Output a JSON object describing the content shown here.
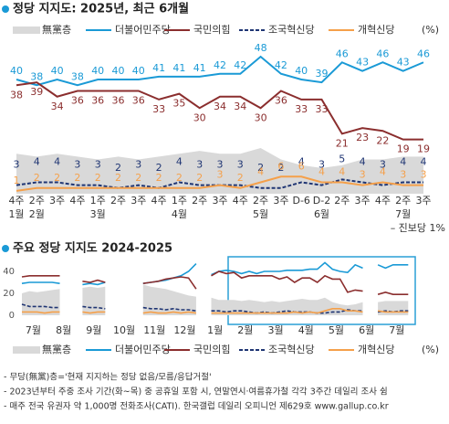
{
  "chart_data": [
    {
      "type": "line",
      "title": "정당 지지도: 2025년, 최근 6개월",
      "categories": [
        "4주",
        "2주",
        "3주",
        "4주",
        "1주",
        "2주",
        "3주",
        "4주",
        "1주",
        "2주",
        "3주",
        "4주",
        "2주",
        "3주",
        "D-6",
        "D-2",
        "2주",
        "3주",
        "4주",
        "2주",
        "3주"
      ],
      "months": [
        "1월",
        "2월",
        null,
        null,
        "3월",
        null,
        null,
        null,
        "4월",
        null,
        null,
        null,
        "5월",
        null,
        null,
        "6월",
        null,
        null,
        null,
        "7월",
        null
      ],
      "series": [
        {
          "name": "無黨층",
          "color": "#d9d9d9",
          "style": "area",
          "values": [
            14,
            13,
            14,
            13,
            12,
            13,
            12,
            13,
            14,
            15,
            14,
            14,
            16,
            12,
            10,
            9,
            10,
            12,
            12,
            13,
            13
          ]
        },
        {
          "name": "더불어민주당",
          "color": "#1a9ad6",
          "values": [
            40,
            38,
            40,
            38,
            40,
            40,
            40,
            41,
            41,
            41,
            42,
            42,
            48,
            42,
            40,
            39,
            46,
            43,
            46,
            43,
            46
          ]
        },
        {
          "name": "국민의힘",
          "color": "#8b2e2e",
          "values": [
            38,
            39,
            34,
            36,
            36,
            36,
            36,
            33,
            35,
            30,
            34,
            34,
            30,
            36,
            33,
            33,
            21,
            23,
            22,
            19,
            19
          ]
        },
        {
          "name": "조국혁신당",
          "color": "#1f3573",
          "dash": true,
          "values": [
            3,
            4,
            4,
            3,
            3,
            2,
            3,
            2,
            4,
            3,
            3,
            3,
            2,
            2,
            4,
            3,
            5,
            4,
            3,
            4,
            4
          ]
        },
        {
          "name": "개혁신당",
          "color": "#f5a04a",
          "values": [
            1,
            2,
            2,
            2,
            2,
            2,
            2,
            2,
            2,
            2,
            3,
            2,
            4,
            6,
            6,
            4,
            4,
            3,
            4,
            3,
            3
          ]
        }
      ],
      "unit": "(%)",
      "data_labels": true,
      "annotation": "– 진보당 1%"
    },
    {
      "type": "line",
      "title": "주요 정당 지지도 2024-2025",
      "categories": [
        "7월",
        null,
        null,
        null,
        "8월",
        null,
        null,
        null,
        "9월",
        null,
        null,
        null,
        "10월",
        null,
        null,
        null,
        "11월",
        null,
        null,
        null,
        "12월",
        null,
        null,
        null,
        "1월",
        null,
        null,
        null,
        "2월",
        null,
        null,
        null,
        "3월",
        null,
        null,
        null,
        "4월",
        null,
        null,
        null,
        "5월",
        null,
        null,
        null,
        "6월",
        null,
        null,
        null,
        "7월",
        null,
        null,
        null
      ],
      "series": [
        {
          "name": "無黨층",
          "color": "#d9d9d9",
          "style": "area",
          "values": [
            20,
            22,
            21,
            22,
            23,
            24,
            null,
            null,
            25,
            26,
            25,
            26,
            null,
            27,
            null,
            null,
            28,
            26,
            25,
            24,
            22,
            20,
            18,
            17,
            null,
            16,
            14,
            14,
            14,
            13,
            14,
            13,
            12,
            13,
            12,
            13,
            14,
            15,
            14,
            14,
            16,
            12,
            10,
            9,
            10,
            12,
            null,
            12,
            13,
            13,
            13,
            13
          ]
        },
        {
          "name": "더불어민주당",
          "color": "#1a9ad6",
          "values": [
            29,
            30,
            30,
            30,
            30,
            29,
            null,
            null,
            28,
            29,
            28,
            30,
            null,
            31,
            null,
            null,
            29,
            30,
            31,
            32,
            34,
            36,
            40,
            47,
            null,
            37,
            40,
            41,
            40,
            38,
            40,
            38,
            40,
            40,
            40,
            41,
            41,
            41,
            42,
            42,
            48,
            42,
            40,
            39,
            46,
            43,
            null,
            46,
            43,
            46,
            46,
            46
          ]
        },
        {
          "name": "국민의힘",
          "color": "#8b2e2e",
          "values": [
            35,
            36,
            36,
            36,
            36,
            36,
            null,
            null,
            31,
            30,
            32,
            30,
            null,
            30,
            null,
            null,
            29,
            30,
            31,
            33,
            34,
            35,
            34,
            24,
            null,
            36,
            40,
            38,
            39,
            34,
            36,
            36,
            36,
            36,
            33,
            35,
            30,
            34,
            34,
            30,
            36,
            33,
            33,
            21,
            23,
            22,
            null,
            19,
            21,
            19,
            19,
            19
          ]
        },
        {
          "name": "조국혁신당",
          "color": "#1f3573",
          "dash": true,
          "values": [
            10,
            8,
            8,
            8,
            7,
            7,
            null,
            null,
            8,
            7,
            7,
            6,
            null,
            6,
            null,
            null,
            7,
            6,
            6,
            5,
            6,
            5,
            5,
            4,
            null,
            4,
            4,
            3,
            4,
            4,
            3,
            2,
            3,
            2,
            3,
            4,
            3,
            3,
            3,
            2,
            2,
            3,
            3,
            5,
            4,
            4,
            null,
            3,
            4,
            3,
            4,
            4
          ]
        },
        {
          "name": "개혁신당",
          "color": "#f5a04a",
          "values": [
            3,
            3,
            3,
            2,
            3,
            3,
            null,
            null,
            3,
            2,
            3,
            3,
            null,
            3,
            null,
            null,
            2,
            3,
            2,
            2,
            3,
            2,
            3,
            2,
            null,
            2,
            2,
            2,
            2,
            2,
            2,
            2,
            2,
            2,
            2,
            2,
            3,
            2,
            3,
            2,
            4,
            6,
            6,
            4,
            4,
            3,
            null,
            4,
            3,
            3,
            3,
            3
          ]
        }
      ],
      "unit": "(%)",
      "ylim": [
        0,
        50
      ],
      "yticks": [
        0,
        20,
        40
      ]
    }
  ],
  "notes": [
    "- 무당(無黨)층='현재 지지하는 정당 없음/모름/응답거절'",
    "- 2023년부터 주중 조사 기간(화~목) 중 공휴일 포함 시, 연말연시·여름휴가철 각각 3주간 데일리 조사 쉼",
    "- 매주 전국 유권자 약 1,000명 전화조사(CATI). 한국갤럽 데일리 오피니언 제629호 www.gallup.co.kr"
  ]
}
